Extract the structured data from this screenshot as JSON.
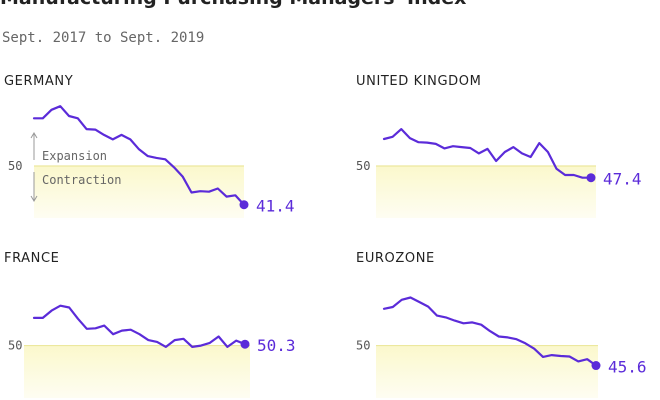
{
  "header": {
    "title": "Manufacturing Purchasing Managers' Index",
    "subtitle": "Sept. 2017 to Sept. 2019"
  },
  "colors": {
    "line": "#5b2bd9",
    "band": "#fbf8cc",
    "baseline": "#ece89e",
    "label": "#5b2bd9"
  },
  "chart_data": [
    {
      "type": "line",
      "title": "GERMANY",
      "baseline": 50,
      "baseline_label": "50",
      "annotation_up": "Expansion",
      "annotation_down": "Contraction",
      "ylim": [
        38,
        66
      ],
      "x": [
        "2017-09",
        "2017-10",
        "2017-11",
        "2017-12",
        "2018-01",
        "2018-02",
        "2018-03",
        "2018-04",
        "2018-05",
        "2018-06",
        "2018-07",
        "2018-08",
        "2018-09",
        "2018-10",
        "2018-11",
        "2018-12",
        "2019-01",
        "2019-02",
        "2019-03",
        "2019-04",
        "2019-05",
        "2019-06",
        "2019-07",
        "2019-08",
        "2019-09"
      ],
      "values": [
        60.6,
        60.6,
        62.5,
        63.3,
        61.1,
        60.6,
        58.2,
        58.1,
        56.9,
        55.9,
        56.9,
        55.9,
        53.7,
        52.2,
        51.8,
        51.5,
        49.7,
        47.6,
        44.1,
        44.4,
        44.3,
        45.0,
        43.2,
        43.5,
        41.4
      ],
      "last_label": "41.4"
    },
    {
      "type": "line",
      "title": "UNITED KINGDOM",
      "baseline": 50,
      "baseline_label": "50",
      "ylim": [
        38,
        66
      ],
      "x": [
        "2017-09",
        "2017-10",
        "2017-11",
        "2017-12",
        "2018-01",
        "2018-02",
        "2018-03",
        "2018-04",
        "2018-05",
        "2018-06",
        "2018-07",
        "2018-08",
        "2018-09",
        "2018-10",
        "2018-11",
        "2018-12",
        "2019-01",
        "2019-02",
        "2019-03",
        "2019-04",
        "2019-05",
        "2019-06",
        "2019-07",
        "2019-08",
        "2019-09"
      ],
      "values": [
        56.0,
        56.5,
        58.2,
        56.2,
        55.3,
        55.2,
        54.9,
        53.9,
        54.4,
        54.2,
        54.0,
        52.8,
        53.8,
        51.1,
        53.1,
        54.2,
        52.8,
        52.0,
        55.1,
        53.1,
        49.4,
        48.0,
        48.0,
        47.4,
        47.4
      ],
      "last_label": "47.4"
    },
    {
      "type": "line",
      "title": "FRANCE",
      "baseline": 50,
      "baseline_label": "50",
      "ylim": [
        38,
        66
      ],
      "x": [
        "2017-09",
        "2017-10",
        "2017-11",
        "2017-12",
        "2018-01",
        "2018-02",
        "2018-03",
        "2018-04",
        "2018-05",
        "2018-06",
        "2018-07",
        "2018-08",
        "2018-09",
        "2018-10",
        "2018-11",
        "2018-12",
        "2019-01",
        "2019-02",
        "2019-03",
        "2019-04",
        "2019-05",
        "2019-06",
        "2019-07",
        "2019-08",
        "2019-09"
      ],
      "values": [
        56.1,
        56.1,
        57.7,
        58.8,
        58.4,
        55.9,
        53.7,
        53.8,
        54.4,
        52.5,
        53.3,
        53.5,
        52.5,
        51.2,
        50.8,
        49.7,
        51.2,
        51.5,
        49.7,
        50.0,
        50.6,
        52.0,
        49.7,
        51.1,
        50.3
      ],
      "last_label": "50.3"
    },
    {
      "type": "line",
      "title": "EUROZONE",
      "baseline": 50,
      "baseline_label": "50",
      "ylim": [
        38,
        66
      ],
      "x": [
        "2017-09",
        "2017-10",
        "2017-11",
        "2017-12",
        "2018-01",
        "2018-02",
        "2018-03",
        "2018-04",
        "2018-05",
        "2018-06",
        "2018-07",
        "2018-08",
        "2018-09",
        "2018-10",
        "2018-11",
        "2018-12",
        "2019-01",
        "2019-02",
        "2019-03",
        "2019-04",
        "2019-05",
        "2019-06",
        "2019-07",
        "2019-08",
        "2019-09"
      ],
      "values": [
        58.1,
        58.5,
        60.1,
        60.6,
        59.6,
        58.6,
        56.6,
        56.2,
        55.5,
        54.9,
        55.1,
        54.6,
        53.2,
        52.0,
        51.8,
        51.4,
        50.5,
        49.3,
        47.5,
        47.9,
        47.7,
        47.6,
        46.5,
        47.0,
        45.6
      ],
      "last_label": "45.6"
    }
  ]
}
